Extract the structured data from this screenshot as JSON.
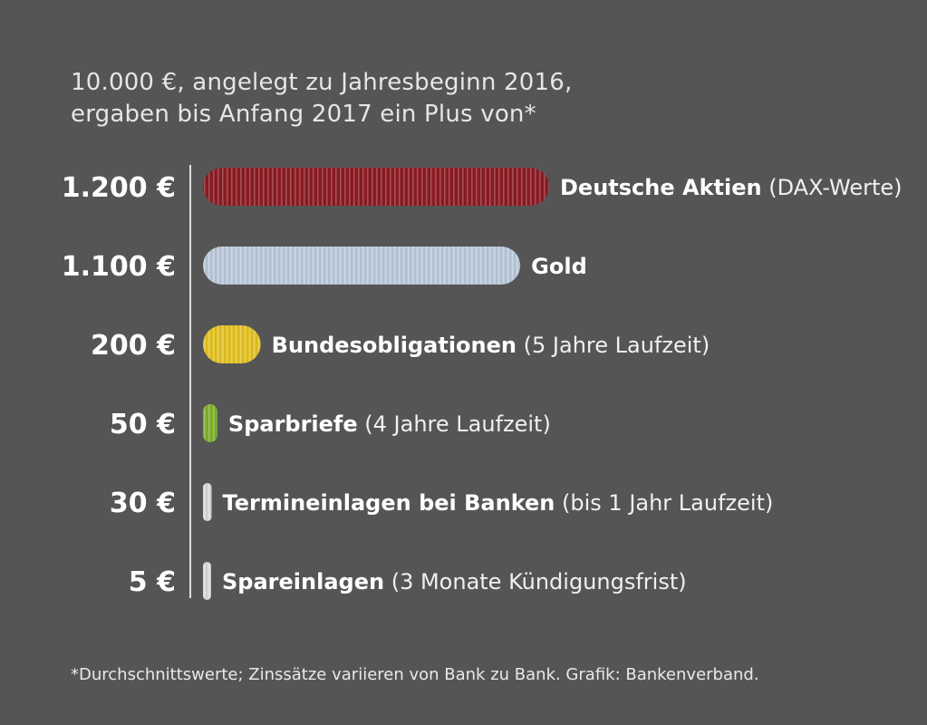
{
  "title": {
    "line1": "10.000 €, angelegt zu Jahresbeginn 2016,",
    "line2": "ergaben bis Anfang 2017 ein Plus von*"
  },
  "footnote": "*Durchschnittswerte; Zinssätze variieren von Bank zu Bank. Grafik: Bankenverband.",
  "chart_data": {
    "type": "bar",
    "orientation": "horizontal",
    "unit": "€",
    "categories": [
      {
        "name": "Deutsche Aktien",
        "detail": "(DAX-Werte)"
      },
      {
        "name": "Gold",
        "detail": ""
      },
      {
        "name": "Bundesobligationen",
        "detail": "(5 Jahre Laufzeit)"
      },
      {
        "name": "Sparbriefe",
        "detail": "(4 Jahre Laufzeit)"
      },
      {
        "name": "Termineinlagen bei Banken",
        "detail": "(bis 1 Jahr Laufzeit)"
      },
      {
        "name": "Spareinlagen",
        "detail": "(3 Monate Kündigungsfrist)"
      }
    ],
    "values": [
      1200,
      1100,
      200,
      50,
      30,
      5
    ],
    "value_labels": [
      "1.200 €",
      "1.100 €",
      "200 €",
      "50 €",
      "30 €",
      "5 €"
    ],
    "colors": [
      "#8b1c24",
      "#b9c9da",
      "#e3c224",
      "#7fb030",
      "#d8d8d8",
      "#d8d8d8"
    ],
    "grid": false
  }
}
